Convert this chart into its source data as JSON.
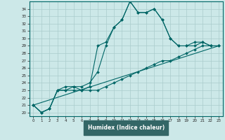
{
  "xlabel": "Humidex (Indice chaleur)",
  "bg_color": "#cce8e8",
  "grid_color": "#aacccc",
  "line_color": "#006666",
  "bottom_bar_color": "#336666",
  "xlim": [
    -0.5,
    23.5
  ],
  "ylim": [
    19.5,
    35.0
  ],
  "xticks": [
    0,
    1,
    2,
    3,
    4,
    5,
    6,
    7,
    8,
    9,
    10,
    11,
    12,
    13,
    14,
    15,
    16,
    17,
    18,
    19,
    20,
    21,
    22,
    23
  ],
  "yticks": [
    20,
    21,
    22,
    23,
    24,
    25,
    26,
    27,
    28,
    29,
    30,
    31,
    32,
    33,
    34
  ],
  "series1_x": [
    0,
    1,
    2,
    3,
    4,
    5,
    6,
    7,
    8,
    9,
    10,
    11,
    12,
    13,
    14,
    15,
    16,
    17,
    18,
    19,
    20,
    21,
    22,
    23
  ],
  "series1_y": [
    21.0,
    20.0,
    20.5,
    23.0,
    23.0,
    23.5,
    23.0,
    23.5,
    29.0,
    29.5,
    31.5,
    32.5,
    35.0,
    33.5,
    33.5,
    34.0,
    32.5,
    30.0,
    29.0,
    29.0,
    29.0,
    29.5,
    29.0,
    29.0
  ],
  "series2_x": [
    0,
    1,
    2,
    3,
    4,
    5,
    6,
    7,
    8,
    9,
    10,
    11,
    12,
    13,
    14,
    15,
    16,
    17,
    18,
    19,
    20,
    21,
    22,
    23
  ],
  "series2_y": [
    21.0,
    20.0,
    20.5,
    23.0,
    23.5,
    23.5,
    23.5,
    24.0,
    25.5,
    29.0,
    31.5,
    32.5,
    35.0,
    33.5,
    33.5,
    34.0,
    32.5,
    30.0,
    29.0,
    29.0,
    29.5,
    29.5,
    29.0,
    29.0
  ],
  "series3_x": [
    0,
    1,
    2,
    3,
    4,
    5,
    6,
    7,
    8,
    9,
    10,
    11,
    12,
    13,
    14,
    15,
    16,
    17,
    18,
    19,
    20,
    21,
    22,
    23
  ],
  "series3_y": [
    21.0,
    20.0,
    20.5,
    23.0,
    23.0,
    23.0,
    23.0,
    23.0,
    23.0,
    23.5,
    24.0,
    24.5,
    25.0,
    25.5,
    26.0,
    26.5,
    27.0,
    27.0,
    27.5,
    28.0,
    28.5,
    29.0,
    29.0,
    29.0
  ],
  "series4_x": [
    0,
    23
  ],
  "series4_y": [
    21.0,
    29.0
  ]
}
